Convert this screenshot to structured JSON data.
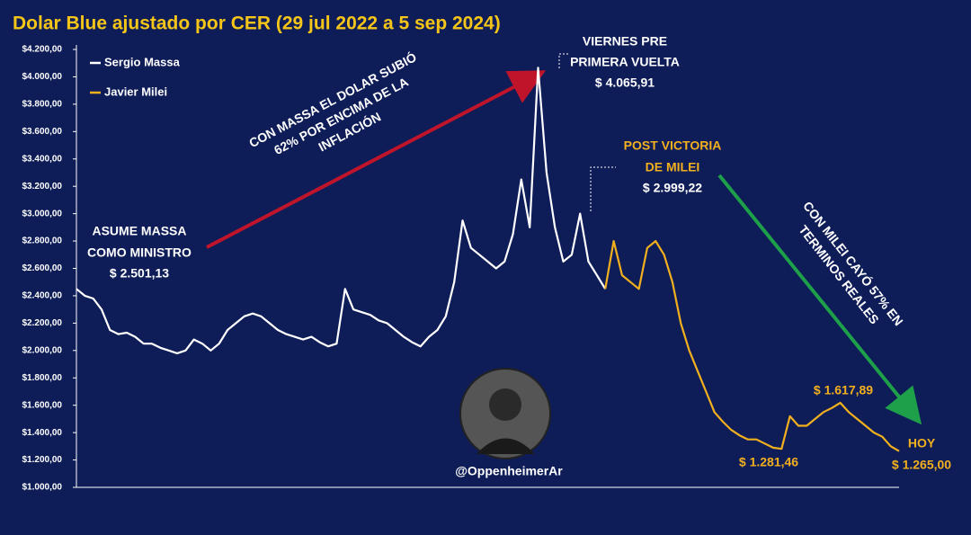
{
  "chart_data": {
    "type": "line",
    "title": "Dolar Blue ajustado por CER (29 jul 2022 a 5 sep 2024)",
    "categories": [
      null,
      null,
      null,
      null,
      null,
      null,
      null,
      null,
      null,
      null,
      null,
      null,
      null,
      null,
      null,
      null,
      null,
      null,
      null,
      null,
      null,
      null,
      null,
      null,
      null,
      null,
      null,
      null,
      null,
      null,
      null,
      null,
      null,
      null,
      null,
      null,
      null,
      null,
      null,
      null,
      null,
      null,
      null,
      null,
      null,
      null,
      null,
      null,
      null,
      null,
      null,
      null,
      null,
      null,
      null,
      null,
      null,
      null,
      null,
      null,
      null,
      null,
      null,
      null,
      null,
      null,
      null,
      null,
      null,
      null,
      null,
      null,
      null,
      null,
      null,
      null,
      null,
      null,
      null,
      null,
      null,
      null,
      null,
      null,
      null,
      null,
      null,
      null,
      null,
      null,
      null,
      null,
      null,
      null,
      null,
      null,
      null,
      null,
      null
    ],
    "series": [
      {
        "name": "Sergio Massa",
        "color": "#ffffff",
        "values": [
          2450,
          2400,
          2380,
          2300,
          2150,
          2120,
          2130,
          2100,
          2050,
          2050,
          2020,
          2000,
          1980,
          2000,
          2080,
          2050,
          2000,
          2050,
          2150,
          2200,
          2250,
          2270,
          2250,
          2200,
          2150,
          2120,
          2100,
          2080,
          2100,
          2060,
          2030,
          2050,
          2450,
          2300,
          2280,
          2260,
          2220,
          2200,
          2150,
          2100,
          2060,
          2030,
          2100,
          2150,
          2250,
          2500,
          2950,
          2750,
          2700,
          2650,
          2600,
          2650,
          2850,
          3250,
          2900,
          4065.91,
          3300,
          2900,
          2650,
          2700,
          3000,
          2650,
          2550,
          2450,
          null,
          null,
          null,
          null,
          null,
          null,
          null,
          null,
          null,
          null,
          null,
          null,
          null,
          null,
          null,
          null,
          null,
          null,
          null,
          null,
          null,
          null,
          null,
          null,
          null,
          null,
          null,
          null,
          null,
          null,
          null,
          null,
          null,
          null,
          null
        ]
      },
      {
        "name": "Javier Milei",
        "color": "#f2b01e",
        "values": [
          null,
          null,
          null,
          null,
          null,
          null,
          null,
          null,
          null,
          null,
          null,
          null,
          null,
          null,
          null,
          null,
          null,
          null,
          null,
          null,
          null,
          null,
          null,
          null,
          null,
          null,
          null,
          null,
          null,
          null,
          null,
          null,
          null,
          null,
          null,
          null,
          null,
          null,
          null,
          null,
          null,
          null,
          null,
          null,
          null,
          null,
          null,
          null,
          null,
          null,
          null,
          null,
          null,
          null,
          null,
          null,
          null,
          null,
          null,
          null,
          null,
          null,
          null,
          2450,
          2800,
          2550,
          2500,
          2450,
          2750,
          2800,
          2700,
          2500,
          2200,
          2000,
          1850,
          1700,
          1550,
          1480,
          1420,
          1380,
          1350,
          1350,
          1320,
          1290,
          1281.46,
          1520,
          1450,
          1450,
          1500,
          1550,
          1580,
          1617.89,
          1550,
          1500,
          1450,
          1400,
          1370,
          1300,
          1265
        ]
      }
    ],
    "ylim": [
      1000,
      4200
    ],
    "yticks": [
      {
        "value": 1000,
        "label": "$1.000,00"
      },
      {
        "value": 1200,
        "label": "$1.200,00"
      },
      {
        "value": 1400,
        "label": "$1.400,00"
      },
      {
        "value": 1600,
        "label": "$1.600,00"
      },
      {
        "value": 1800,
        "label": "$1.800,00"
      },
      {
        "value": 2000,
        "label": "$2.000,00"
      },
      {
        "value": 2200,
        "label": "$2.200,00"
      },
      {
        "value": 2400,
        "label": "$2.400,00"
      },
      {
        "value": 2600,
        "label": "$2.600,00"
      },
      {
        "value": 2800,
        "label": "$2.800,00"
      },
      {
        "value": 3000,
        "label": "$3.000,00"
      },
      {
        "value": 3200,
        "label": "$3.200,00"
      },
      {
        "value": 3400,
        "label": "$3.400,00"
      },
      {
        "value": 3600,
        "label": "$3.600,00"
      },
      {
        "value": 3800,
        "label": "$3.800,00"
      },
      {
        "value": 4000,
        "label": "$4.000,00"
      },
      {
        "value": 4200,
        "label": "$4.200,00"
      }
    ],
    "grid": false,
    "legend": "top-left",
    "annotations": [
      [
        "ASUME MASSA",
        "COMO MINISTRO",
        "$ 2.501,13"
      ],
      [
        "VIERNES PRE",
        "PRIMERA VUELTA",
        "$ 4.065,91"
      ],
      [
        "POST VICTORIA",
        "DE MILEI",
        "$ 2.999,22"
      ],
      [
        "$ 1.281,46"
      ],
      [
        "$ 1.617,89"
      ],
      [
        "HOY",
        "$ 1.265,00"
      ],
      [
        "CON MASSA EL DOLAR SUBIÓ",
        "62% POR ENCIMA DE LA",
        "INFLACIÓN"
      ],
      [
        "CON MILEI CAYÓ 57% EN",
        "TERMINOS REALES"
      ]
    ],
    "watermark": "@OppenheimerAr"
  }
}
